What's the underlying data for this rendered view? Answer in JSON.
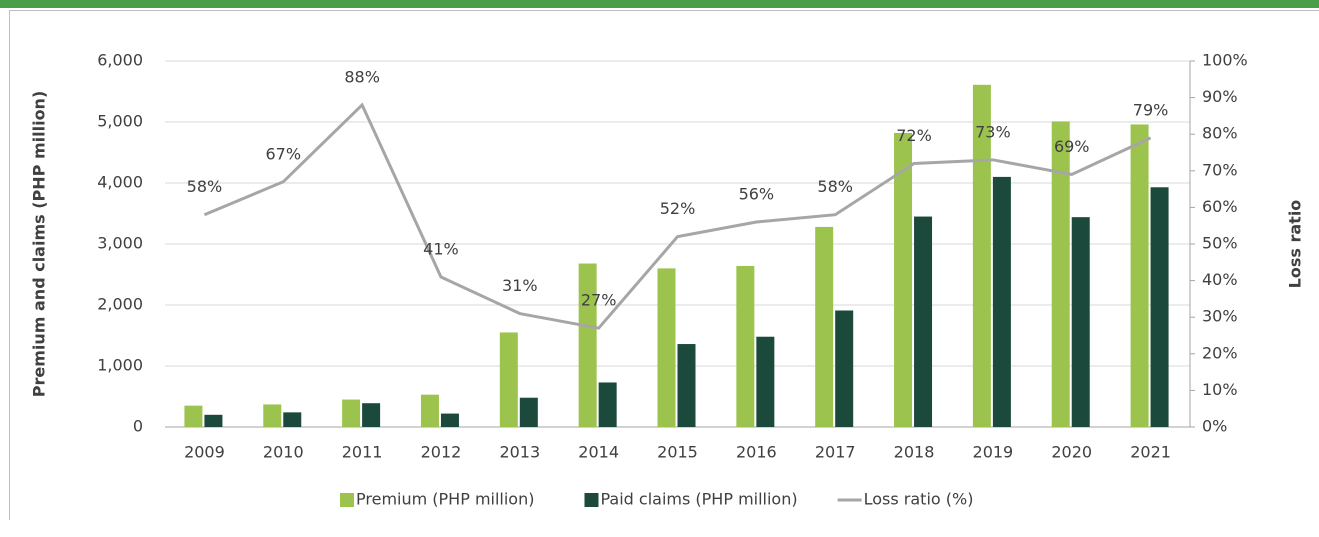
{
  "chart_data": {
    "type": "bar_line",
    "categories": [
      "2009",
      "2010",
      "2011",
      "2012",
      "2013",
      "2014",
      "2015",
      "2016",
      "2017",
      "2018",
      "2019",
      "2020",
      "2021"
    ],
    "ylabel": "Premium and claims (PHP million)",
    "y2label": "Loss ratio",
    "ylim": [
      0,
      6000
    ],
    "yticks": [
      0,
      {
        "value": 1000,
        "label": "1,000"
      },
      {
        "value": 2000,
        "label": "2,000"
      },
      {
        "value": 3000,
        "label": "3,000"
      },
      {
        "value": 4000,
        "label": "4,000"
      },
      {
        "value": 5000,
        "label": "5,000"
      },
      {
        "value": 6000,
        "label": "6,000"
      }
    ],
    "y2lim": [
      0,
      100
    ],
    "y2ticks": [
      {
        "value": 0,
        "label": "0%"
      },
      {
        "value": 10,
        "label": "10%"
      },
      {
        "value": 20,
        "label": "20%"
      },
      {
        "value": 30,
        "label": "30%"
      },
      {
        "value": 40,
        "label": "40%"
      },
      {
        "value": 50,
        "label": "50%"
      },
      {
        "value": 60,
        "label": "60%"
      },
      {
        "value": 70,
        "label": "70%"
      },
      {
        "value": 80,
        "label": "80%"
      },
      {
        "value": 90,
        "label": "90%"
      },
      {
        "value": 100,
        "label": "100%"
      }
    ],
    "grid": true,
    "legend": "bottom",
    "series": [
      {
        "name": "Premium (PHP million)",
        "type": "bar",
        "color": "#9dc34f",
        "values": [
          350,
          370,
          450,
          530,
          1550,
          2680,
          2600,
          2640,
          3280,
          4820,
          5610,
          5010,
          4960
        ]
      },
      {
        "name": "Paid claims (PHP million)",
        "type": "bar",
        "color": "#1b4a3d",
        "values": [
          200,
          240,
          390,
          220,
          480,
          730,
          1360,
          1480,
          1910,
          3450,
          4100,
          3440,
          3930
        ]
      },
      {
        "name": "Loss ratio (%)",
        "type": "line",
        "axis": "y2",
        "color": "#a6a6a6",
        "values": [
          58,
          67,
          88,
          41,
          31,
          27,
          52,
          56,
          58,
          72,
          73,
          69,
          79
        ],
        "value_labels": [
          "58%",
          "67%",
          "88%",
          "41%",
          "31%",
          "27%",
          "52%",
          "56%",
          "58%",
          "72%",
          "73%",
          "69%",
          "79%"
        ]
      }
    ]
  }
}
